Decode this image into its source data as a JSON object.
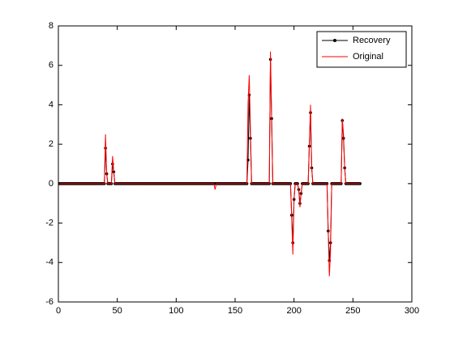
{
  "chart_data": {
    "type": "line",
    "x": [
      1,
      2,
      3,
      4,
      5,
      6,
      7,
      8,
      9,
      10,
      11,
      12,
      13,
      14,
      15,
      16,
      17,
      18,
      19,
      20,
      21,
      22,
      23,
      24,
      25,
      26,
      27,
      28,
      29,
      30,
      31,
      32,
      33,
      34,
      35,
      36,
      37,
      38,
      39,
      40,
      41,
      42,
      43,
      44,
      45,
      46,
      47,
      48,
      49,
      50,
      51,
      52,
      53,
      54,
      55,
      56,
      57,
      58,
      59,
      60,
      61,
      62,
      63,
      64,
      65,
      66,
      67,
      68,
      69,
      70,
      71,
      72,
      73,
      74,
      75,
      76,
      77,
      78,
      79,
      80,
      81,
      82,
      83,
      84,
      85,
      86,
      87,
      88,
      89,
      90,
      91,
      92,
      93,
      94,
      95,
      96,
      97,
      98,
      99,
      100,
      101,
      102,
      103,
      104,
      105,
      106,
      107,
      108,
      109,
      110,
      111,
      112,
      113,
      114,
      115,
      116,
      117,
      118,
      119,
      120,
      121,
      122,
      123,
      124,
      125,
      126,
      127,
      128,
      129,
      130,
      131,
      132,
      133,
      134,
      135,
      136,
      137,
      138,
      139,
      140,
      141,
      142,
      143,
      144,
      145,
      146,
      147,
      148,
      149,
      150,
      151,
      152,
      153,
      154,
      155,
      156,
      157,
      158,
      159,
      160,
      161,
      162,
      163,
      164,
      165,
      166,
      167,
      168,
      169,
      170,
      171,
      172,
      173,
      174,
      175,
      176,
      177,
      178,
      179,
      180,
      181,
      182,
      183,
      184,
      185,
      186,
      187,
      188,
      189,
      190,
      191,
      192,
      193,
      194,
      195,
      196,
      197,
      198,
      199,
      200,
      201,
      202,
      203,
      204,
      205,
      206,
      207,
      208,
      209,
      210,
      211,
      212,
      213,
      214,
      215,
      216,
      217,
      218,
      219,
      220,
      221,
      222,
      223,
      224,
      225,
      226,
      227,
      228,
      229,
      230,
      231,
      232,
      233,
      234,
      235,
      236,
      237,
      238,
      239,
      240,
      241,
      242,
      243,
      244,
      245,
      246,
      247,
      248,
      249,
      250,
      251,
      252,
      253,
      254,
      255,
      256
    ],
    "series": [
      {
        "name": "Recovery",
        "color": "#000000",
        "marker": true,
        "values": [
          0,
          0,
          0,
          0,
          0,
          0,
          0,
          0,
          0,
          0,
          0,
          0,
          0,
          0,
          0,
          0,
          0,
          0,
          0,
          0,
          0,
          0,
          0,
          0,
          0,
          0,
          0,
          0,
          0,
          0,
          0,
          0,
          0,
          0,
          0,
          0,
          0,
          0,
          0,
          1.8,
          0.5,
          0,
          0,
          0,
          0,
          1,
          0.6,
          0,
          0,
          0,
          0,
          0,
          0,
          0,
          0,
          0,
          0,
          0,
          0,
          0,
          0,
          0,
          0,
          0,
          0,
          0,
          0,
          0,
          0,
          0,
          0,
          0,
          0,
          0,
          0,
          0,
          0,
          0,
          0,
          0,
          0,
          0,
          0,
          0,
          0,
          0,
          0,
          0,
          0,
          0,
          0,
          0,
          0,
          0,
          0,
          0,
          0,
          0,
          0,
          0,
          0,
          0,
          0,
          0,
          0,
          0,
          0,
          0,
          0,
          0,
          0,
          0,
          0,
          0,
          0,
          0,
          0,
          0,
          0,
          0,
          0,
          0,
          0,
          0,
          0,
          0,
          0,
          0,
          0,
          0,
          0,
          0,
          0,
          0,
          0,
          0,
          0,
          0,
          0,
          0,
          0,
          0,
          0,
          0,
          0,
          0,
          0,
          0,
          0,
          0,
          0,
          0,
          0,
          0,
          0,
          0,
          0,
          0,
          0,
          0,
          1.2,
          4.5,
          2.3,
          0,
          0,
          0,
          0,
          0,
          0,
          0,
          0,
          0,
          0,
          0,
          0,
          0,
          0,
          0,
          0,
          6.3,
          3.3,
          0,
          0,
          0,
          0,
          0,
          0,
          0,
          0,
          0,
          0,
          0,
          0,
          0,
          0,
          0,
          0,
          -1.6,
          -3,
          -0.8,
          0,
          0,
          0,
          -0.3,
          -1,
          -0.5,
          0,
          0,
          0,
          0,
          0,
          0,
          1.9,
          3.6,
          0.8,
          0,
          0,
          0,
          0,
          0,
          0,
          0,
          0,
          0,
          0,
          0,
          0,
          0,
          -2.4,
          -3.9,
          -3,
          0,
          0,
          0,
          0,
          0,
          0,
          0,
          0,
          0,
          3.2,
          2.3,
          0.8,
          0,
          0,
          0,
          0,
          0,
          0,
          0,
          0,
          0,
          0,
          0,
          0,
          0
        ]
      },
      {
        "name": "Original",
        "color": "#ff0000",
        "marker": false,
        "values": [
          0,
          0,
          0,
          0,
          0,
          0,
          0,
          0,
          0,
          0,
          0,
          0,
          0,
          0,
          0,
          0,
          0,
          0,
          0,
          0,
          0,
          0,
          0,
          0,
          0,
          0,
          0,
          0,
          0,
          0,
          0,
          0,
          0,
          0,
          0,
          0,
          0,
          0,
          0,
          2.5,
          0.5,
          0,
          0,
          0,
          0,
          1.4,
          0.6,
          0,
          0,
          0,
          0,
          0,
          0,
          0,
          0,
          0,
          0,
          0,
          0,
          0,
          0,
          0,
          0,
          0,
          0,
          0,
          0,
          0,
          0,
          0,
          0,
          0,
          0,
          0,
          0,
          0,
          0,
          0,
          0,
          0,
          0,
          0,
          0,
          0,
          0,
          0,
          0,
          0,
          0,
          0,
          0,
          0,
          0,
          0,
          0,
          0,
          0,
          0,
          0,
          0,
          0,
          0,
          0,
          0,
          0,
          0,
          0,
          0,
          0,
          0,
          0,
          0,
          0,
          0,
          0,
          0,
          0,
          0,
          0,
          0,
          0,
          0,
          0,
          0,
          0,
          0,
          0,
          0,
          0,
          0,
          0,
          0,
          -0.3,
          0,
          0,
          0,
          0,
          0,
          0,
          0,
          0,
          0,
          0,
          0,
          0,
          0,
          0,
          0,
          0,
          0,
          0,
          0,
          0,
          0,
          0,
          0,
          0,
          0,
          0,
          0,
          4.1,
          5.5,
          2.7,
          0,
          0,
          0,
          0,
          0,
          0,
          0,
          0,
          0,
          0,
          0,
          0,
          0,
          0,
          0,
          0,
          6.7,
          3.3,
          0,
          0,
          0,
          0,
          0,
          0,
          0,
          0,
          0,
          0,
          0,
          0,
          0,
          0,
          0,
          0,
          -1.7,
          -3.6,
          -0.8,
          0,
          0,
          0,
          -0.3,
          -1.2,
          -0.5,
          0,
          0,
          0,
          0,
          0,
          0,
          2,
          4,
          0.8,
          0,
          0,
          0,
          0,
          0,
          0,
          0,
          0,
          0,
          0,
          0,
          0,
          0,
          -2.4,
          -4.7,
          -3.4,
          0,
          0,
          0,
          0,
          0,
          0,
          0,
          0,
          0,
          3.3,
          2.5,
          0.8,
          0,
          0,
          0,
          0,
          0,
          0,
          0,
          0,
          0,
          0,
          0,
          0,
          0
        ]
      }
    ],
    "xlim": [
      0,
      300
    ],
    "xticks": [
      0,
      50,
      100,
      150,
      200,
      250,
      300
    ],
    "ylim": [
      -6,
      8
    ],
    "yticks": [
      -6,
      -4,
      -2,
      0,
      2,
      4,
      6,
      8
    ],
    "grid": false,
    "legend": "top-right"
  }
}
